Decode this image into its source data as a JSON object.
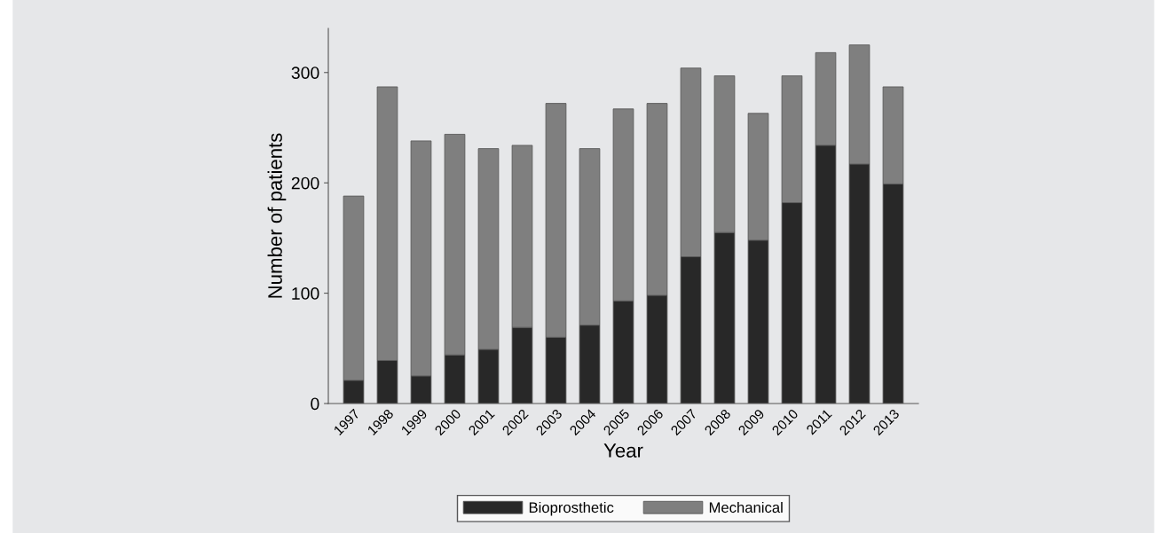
{
  "chart_data": {
    "type": "bar",
    "stacked": true,
    "xlabel": "Year",
    "ylabel": "Number of patients",
    "categories": [
      "1997",
      "1998",
      "1999",
      "2000",
      "2001",
      "2002",
      "2003",
      "2004",
      "2005",
      "2006",
      "2007",
      "2008",
      "2009",
      "2010",
      "2011",
      "2012",
      "2013"
    ],
    "series": [
      {
        "name": "Bioprosthetic",
        "color": "#282828",
        "values": [
          21,
          39,
          25,
          44,
          49,
          69,
          60,
          71,
          93,
          98,
          133,
          155,
          148,
          182,
          234,
          217,
          199
        ]
      },
      {
        "name": "Mechanical",
        "color": "#7f7f7f",
        "values": [
          167,
          248,
          213,
          200,
          182,
          165,
          212,
          160,
          174,
          174,
          171,
          142,
          115,
          115,
          84,
          108,
          88
        ]
      }
    ],
    "ylim": [
      0,
      340
    ],
    "yticks": [
      0,
      100,
      200,
      300
    ],
    "grid": false,
    "legend": "bottom"
  }
}
